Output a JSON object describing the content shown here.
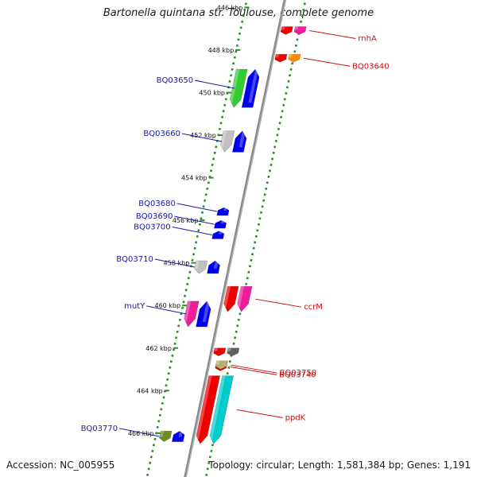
{
  "title": "Bartonella quintana str. Toulouse, complete genome",
  "footer": {
    "accession": "Accession: NC_005955",
    "summary": "Topology: circular; Length: 1,581,384 bp; Genes: 1,191"
  },
  "colors": {
    "backbone": "#8a8a8a",
    "tick_dots": "#2e8b2e",
    "left_label": "#1a1aa8",
    "right_label": "#cc1111",
    "forward_strand": "#0000ee",
    "reverse_strand": "#ee0000"
  },
  "ticks": [
    {
      "kbp": 446,
      "label": "446 kbp"
    },
    {
      "kbp": 448,
      "label": "448 kbp"
    },
    {
      "kbp": 450,
      "label": "450 kbp"
    },
    {
      "kbp": 452,
      "label": "452 kbp"
    },
    {
      "kbp": 454,
      "label": "454 kbp"
    },
    {
      "kbp": 456,
      "label": "456 kbp"
    },
    {
      "kbp": 458,
      "label": "458 kbp"
    },
    {
      "kbp": 460,
      "label": "460 kbp"
    },
    {
      "kbp": 462,
      "label": "462 kbp"
    },
    {
      "kbp": 464,
      "label": "464 kbp"
    },
    {
      "kbp": 466,
      "label": "466 kbp"
    }
  ],
  "features": [
    {
      "name": "rnhA",
      "side": "right",
      "labeled": true,
      "start_kbp": 446.9,
      "end_kbp": 447.1,
      "colors": [
        "#ee0000",
        "#ee1e9a"
      ]
    },
    {
      "name": "BQ03640",
      "side": "right",
      "labeled": true,
      "start_kbp": 448.2,
      "end_kbp": 448.5,
      "colors": [
        "#ee0000",
        "#ff8c00"
      ]
    },
    {
      "name": "BQ03650",
      "side": "left",
      "labeled": true,
      "start_kbp": 448.9,
      "end_kbp": 450.7,
      "colors": [
        "#33cc33",
        "#0000ee"
      ]
    },
    {
      "name": "BQ03660",
      "side": "left",
      "labeled": true,
      "start_kbp": 451.8,
      "end_kbp": 452.8,
      "colors": [
        "#c0c0c0",
        "#0000ee"
      ]
    },
    {
      "name": "BQ03680",
      "side": "left",
      "labeled": true,
      "start_kbp": 455.4,
      "end_kbp": 455.6,
      "colors": [
        "#0000ee"
      ]
    },
    {
      "name": "BQ03690",
      "side": "left",
      "labeled": true,
      "start_kbp": 456.0,
      "end_kbp": 456.2,
      "colors": [
        "#0000ee"
      ]
    },
    {
      "name": "BQ03700",
      "side": "left",
      "labeled": true,
      "start_kbp": 456.5,
      "end_kbp": 456.7,
      "colors": [
        "#0000ee"
      ]
    },
    {
      "name": "BQ03710",
      "side": "left",
      "labeled": true,
      "start_kbp": 457.9,
      "end_kbp": 458.5,
      "colors": [
        "#c0c0c0",
        "#0000ee"
      ]
    },
    {
      "name": "ccrM",
      "side": "right",
      "labeled": true,
      "start_kbp": 459.1,
      "end_kbp": 460.3,
      "colors": [
        "#ee0000",
        "#ee1e9a"
      ]
    },
    {
      "name": "mutY",
      "side": "left",
      "labeled": true,
      "start_kbp": 459.8,
      "end_kbp": 461.0,
      "colors": [
        "#ee1e9a",
        "#0000ee"
      ]
    },
    {
      "name": "",
      "side": "right",
      "labeled": false,
      "start_kbp": 462.0,
      "end_kbp": 462.3,
      "colors": [
        "#ee0000",
        "#606060"
      ]
    },
    {
      "name": "BQ03740",
      "side": "right",
      "labeled": true,
      "start_kbp": 462.7,
      "end_kbp": 462.9,
      "colors": [
        "#ee0000"
      ]
    },
    {
      "name": "BQ03750",
      "side": "right",
      "labeled": true,
      "start_kbp": 462.6,
      "end_kbp": 463.0,
      "colors": [
        "#b8b070"
      ]
    },
    {
      "name": "ppdK",
      "side": "right",
      "labeled": true,
      "start_kbp": 463.3,
      "end_kbp": 466.5,
      "colors": [
        "#ee0000",
        "#00cccc"
      ]
    },
    {
      "name": "BQ03770",
      "side": "left",
      "labeled": true,
      "start_kbp": 465.9,
      "end_kbp": 466.4,
      "colors": [
        "#6b8e23",
        "#0000ee"
      ]
    }
  ]
}
